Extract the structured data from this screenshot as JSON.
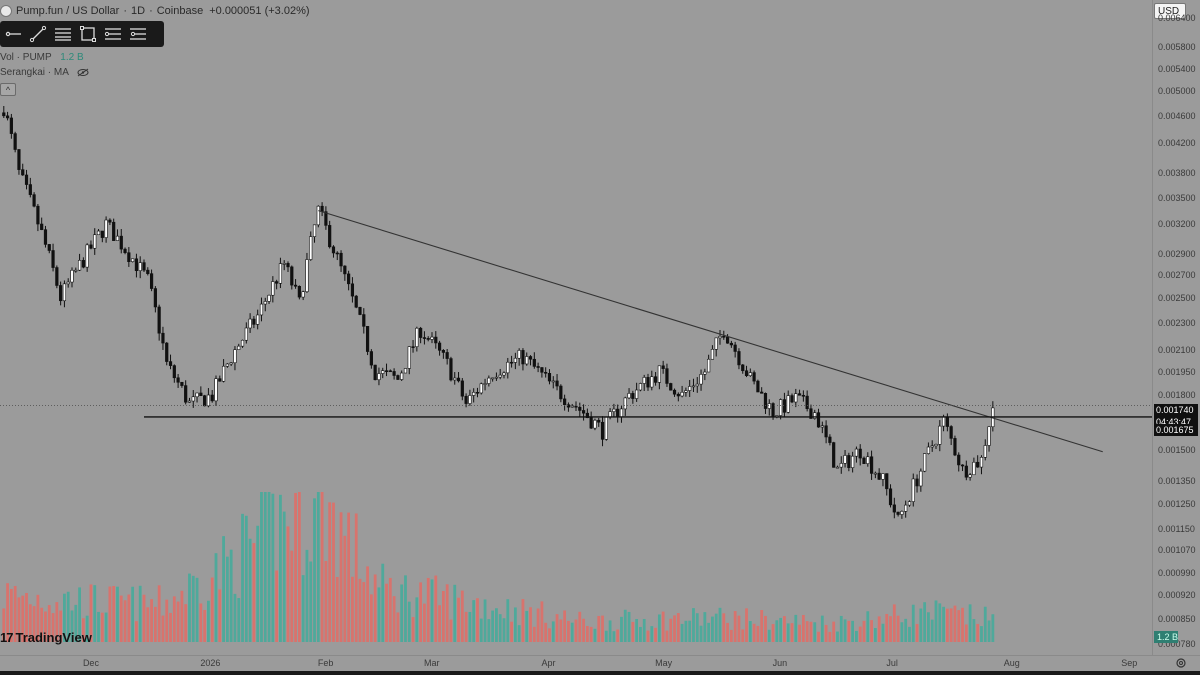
{
  "header": {
    "symbol": "Pump.fun / US Dollar",
    "interval": "1D",
    "exchange": "Coinbase",
    "sep": "·",
    "change": "+0.000051 (+3.02%)"
  },
  "toolbar": {
    "tools": [
      {
        "name": "horizontal-ray-icon"
      },
      {
        "name": "trend-line-icon"
      },
      {
        "name": "parallel-channel-icon"
      },
      {
        "name": "rectangle-icon"
      },
      {
        "name": "fib-retracement-icon"
      },
      {
        "name": "long-position-icon"
      }
    ]
  },
  "indicators": {
    "volume_label": "Vol · PUMP",
    "volume_value": "1.2 B",
    "ma_label": "Serangkai · MA"
  },
  "collapse_label": "^",
  "currency": "USD",
  "price_axis": [
    "0.006400",
    "0.005800",
    "0.005400",
    "0.005000",
    "0.004600",
    "0.004200",
    "0.003800",
    "0.003500",
    "0.003200",
    "0.002900",
    "0.002700",
    "0.002500",
    "0.002300",
    "0.002100",
    "0.001950",
    "0.001800",
    "0.001500",
    "0.001350",
    "0.001250",
    "0.001150",
    "0.001070",
    "0.000990",
    "0.000920",
    "0.000850",
    "0.000780"
  ],
  "price_tags": {
    "last_price": "0.001740",
    "countdown": "04:43:47",
    "level": "0.001675"
  },
  "volume_tag": "1.2 B",
  "time_axis": [
    "Dec",
    "2026",
    "Feb",
    "Mar",
    "Apr",
    "May",
    "Jun",
    "Jul",
    "Aug",
    "Sep"
  ],
  "branding": "TradingView",
  "colors": {
    "background": "#9b9b9b",
    "up_volume": "#4fa99b",
    "down_volume": "#d8736d",
    "candle": "#111111",
    "toolbar": "#1a1a1a"
  },
  "chart_data": {
    "type": "candlestick",
    "instrument": "Pump.fun / US Dollar",
    "interval": "1D",
    "y_scale": "log",
    "ylim": [
      0.00075,
      0.0068
    ],
    "x_range": [
      "2025-11-07",
      "2026-09-07"
    ],
    "close_path": [
      {
        "date": "2025-11-08",
        "close": 0.00475
      },
      {
        "date": "2025-11-12",
        "close": 0.0038
      },
      {
        "date": "2025-11-18",
        "close": 0.0031
      },
      {
        "date": "2025-11-23",
        "close": 0.0025
      },
      {
        "date": "2025-11-30",
        "close": 0.0029
      },
      {
        "date": "2025-12-05",
        "close": 0.0032
      },
      {
        "date": "2025-12-10",
        "close": 0.00295
      },
      {
        "date": "2025-12-16",
        "close": 0.00265
      },
      {
        "date": "2025-12-21",
        "close": 0.002
      },
      {
        "date": "2025-12-27",
        "close": 0.00175
      },
      {
        "date": "2026-01-02",
        "close": 0.0018
      },
      {
        "date": "2026-01-07",
        "close": 0.00205
      },
      {
        "date": "2026-01-14",
        "close": 0.00235
      },
      {
        "date": "2026-01-21",
        "close": 0.0028
      },
      {
        "date": "2026-01-25",
        "close": 0.00245
      },
      {
        "date": "2026-01-30",
        "close": 0.00335
      },
      {
        "date": "2026-02-05",
        "close": 0.00275
      },
      {
        "date": "2026-02-10",
        "close": 0.0023
      },
      {
        "date": "2026-02-14",
        "close": 0.00195
      },
      {
        "date": "2026-02-20",
        "close": 0.0019
      },
      {
        "date": "2026-02-26",
        "close": 0.00225
      },
      {
        "date": "2026-03-05",
        "close": 0.002
      },
      {
        "date": "2026-03-10",
        "close": 0.00175
      },
      {
        "date": "2026-03-17",
        "close": 0.00195
      },
      {
        "date": "2026-03-25",
        "close": 0.00205
      },
      {
        "date": "2026-04-02",
        "close": 0.00185
      },
      {
        "date": "2026-04-10",
        "close": 0.0017
      },
      {
        "date": "2026-04-15",
        "close": 0.0016
      },
      {
        "date": "2026-04-22",
        "close": 0.0018
      },
      {
        "date": "2026-04-30",
        "close": 0.00195
      },
      {
        "date": "2026-05-06",
        "close": 0.0018
      },
      {
        "date": "2026-05-12",
        "close": 0.00195
      },
      {
        "date": "2026-05-17",
        "close": 0.00225
      },
      {
        "date": "2026-05-24",
        "close": 0.0019
      },
      {
        "date": "2026-05-30",
        "close": 0.0017
      },
      {
        "date": "2026-06-05",
        "close": 0.00178
      },
      {
        "date": "2026-06-10",
        "close": 0.0017
      },
      {
        "date": "2026-06-16",
        "close": 0.0014
      },
      {
        "date": "2026-06-22",
        "close": 0.0015
      },
      {
        "date": "2026-06-28",
        "close": 0.00135
      },
      {
        "date": "2026-07-02",
        "close": 0.00118
      },
      {
        "date": "2026-07-08",
        "close": 0.0014
      },
      {
        "date": "2026-07-14",
        "close": 0.00165
      },
      {
        "date": "2026-07-19",
        "close": 0.0014
      },
      {
        "date": "2026-07-24",
        "close": 0.00145
      },
      {
        "date": "2026-07-27",
        "close": 0.00174
      }
    ],
    "volume_scale": "relative (0–1)",
    "volume_profile": [
      {
        "date": "2025-11-08",
        "volume": 0.35
      },
      {
        "date": "2025-12-01",
        "volume": 0.3
      },
      {
        "date": "2025-12-20",
        "volume": 0.28
      },
      {
        "date": "2026-01-05",
        "volume": 0.55
      },
      {
        "date": "2026-01-20",
        "volume": 0.9
      },
      {
        "date": "2026-02-01",
        "volume": 1.0
      },
      {
        "date": "2026-02-15",
        "volume": 0.4
      },
      {
        "date": "2026-03-10",
        "volume": 0.3
      },
      {
        "date": "2026-04-10",
        "volume": 0.15
      },
      {
        "date": "2026-05-15",
        "volume": 0.18
      },
      {
        "date": "2026-06-15",
        "volume": 0.14
      },
      {
        "date": "2026-07-10",
        "volume": 0.22
      },
      {
        "date": "2026-07-27",
        "volume": 0.17
      }
    ],
    "annotations": [
      {
        "type": "trendline",
        "from": {
          "date": "2026-01-30",
          "price": 0.00335
        },
        "to": {
          "date": "2026-08-25",
          "price": 0.00149
        }
      },
      {
        "type": "horizontal",
        "price": 0.001675
      },
      {
        "type": "horizontal_dotted",
        "price": 0.00174
      }
    ]
  }
}
